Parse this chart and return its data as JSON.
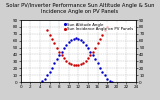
{
  "title": "Solar PV/Inverter Performance Sun Altitude Angle & Sun Incidence Angle on PV Panels",
  "background_color": "#d0d0d0",
  "plot_bg_color": "#ffffff",
  "grid_color": "#b0b0b0",
  "xlim": [
    0,
    24
  ],
  "ylim": [
    0,
    90
  ],
  "sun_altitude": {
    "x": [
      4.5,
      5.0,
      5.5,
      6.0,
      6.5,
      7.0,
      7.5,
      8.0,
      8.5,
      9.0,
      9.5,
      10.0,
      10.5,
      11.0,
      11.5,
      12.0,
      12.5,
      13.0,
      13.5,
      14.0,
      14.5,
      15.0,
      15.5,
      16.0,
      16.5,
      17.0,
      17.5,
      18.0,
      18.5,
      19.0
    ],
    "y": [
      2,
      5,
      10,
      15,
      21,
      27,
      33,
      39,
      44,
      49,
      54,
      58,
      61,
      63,
      64,
      63,
      61,
      58,
      54,
      49,
      44,
      39,
      33,
      27,
      21,
      15,
      10,
      5,
      2,
      0
    ],
    "color": "#0000cc",
    "markersize": 1.5
  },
  "sun_incidence": {
    "x": [
      5.5,
      6.0,
      6.5,
      7.0,
      7.5,
      8.0,
      8.5,
      9.0,
      9.5,
      10.0,
      10.5,
      11.0,
      11.5,
      12.0,
      12.5,
      13.0,
      13.5,
      14.0,
      14.5,
      15.0,
      15.5,
      16.0,
      16.5,
      17.0,
      17.5,
      18.0
    ],
    "y": [
      75,
      68,
      62,
      56,
      50,
      44,
      39,
      35,
      31,
      28,
      26,
      25,
      25,
      25,
      26,
      28,
      31,
      35,
      39,
      44,
      50,
      56,
      62,
      68,
      75,
      80
    ],
    "color": "#cc0000",
    "markersize": 1.5
  },
  "legend_labels": [
    "Sun Altitude Angle",
    "Sun Incidence Angle on PV Panels"
  ],
  "legend_colors": [
    "#0000cc",
    "#cc0000"
  ],
  "yticks": [
    0,
    10,
    20,
    30,
    40,
    50,
    60,
    70,
    80,
    90
  ],
  "xticks": [
    0,
    2,
    4,
    6,
    8,
    10,
    12,
    14,
    16,
    18,
    20,
    22,
    24
  ],
  "title_fontsize": 3.8,
  "tick_fontsize": 3.0,
  "legend_fontsize": 2.8
}
